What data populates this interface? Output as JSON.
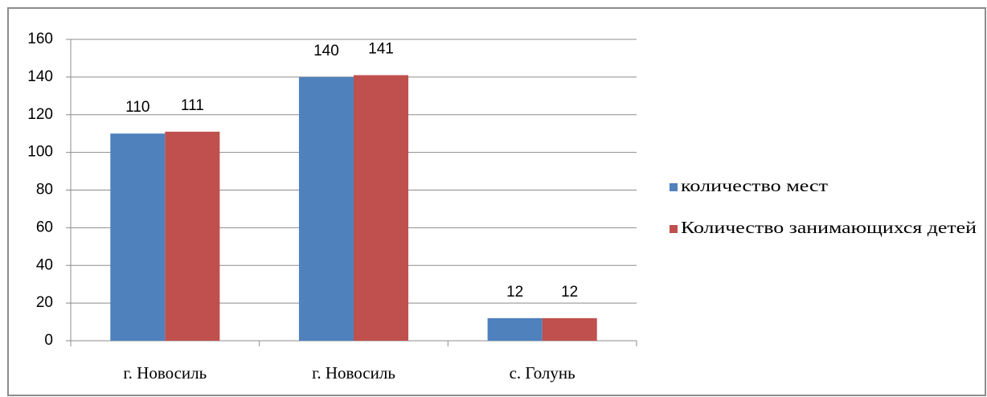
{
  "chart_data": {
    "type": "bar",
    "categories": [
      "г. Новосиль",
      "г. Новосиль",
      "с. Голунь"
    ],
    "series": [
      {
        "name": "количество мест",
        "color": "#4f81bd",
        "values": [
          110,
          140,
          12
        ]
      },
      {
        "name": "Количество занимающихся детей",
        "color": "#c0504d",
        "values": [
          111,
          141,
          12
        ]
      }
    ],
    "ylim": [
      0,
      160
    ],
    "yticks": [
      0,
      20,
      40,
      60,
      80,
      100,
      120,
      140,
      160
    ],
    "grid": true,
    "legend": "right"
  }
}
